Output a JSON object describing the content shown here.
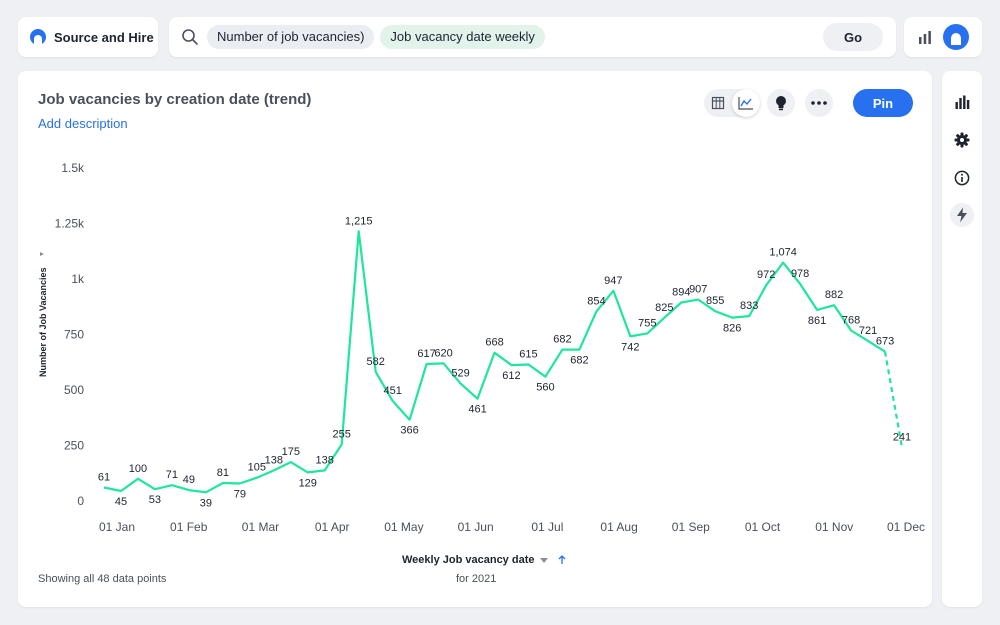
{
  "header": {
    "brand": "Source and Hire",
    "search_chips": [
      "Number of job vacancies)",
      "Job vacancy date weekly"
    ],
    "go_label": "Go"
  },
  "card": {
    "title": "Job vacancies by creation date (trend)",
    "add_description": "Add description",
    "pin_label": "Pin",
    "footer_note": "Showing all 48 data points",
    "x_axis_title": "Weekly Job vacancy date",
    "x_axis_sub": "for 2021",
    "y_axis_title": "Number of Job Vacancies"
  },
  "colors": {
    "line": "#1ee69b",
    "accent": "#2770ef",
    "text": "#1d232f",
    "muted": "#4a505b"
  },
  "icons": {
    "table": "table-icon",
    "chart": "line-chart-icon",
    "insight": "lightbulb-icon",
    "more": "more-icon",
    "side": [
      "bar-chart-icon",
      "gear-icon",
      "info-icon",
      "flash-icon"
    ]
  },
  "chart_data": {
    "type": "line",
    "x_tick_labels": [
      "01 Jan",
      "01 Feb",
      "01 Mar",
      "01 Apr",
      "01 May",
      "01 Jun",
      "01 Jul",
      "01 Aug",
      "01 Sep",
      "01 Oct",
      "01 Nov",
      "01 Dec"
    ],
    "y_tick_labels": [
      "0",
      "250",
      "500",
      "750",
      "1k",
      "1.25k",
      "1.5k"
    ],
    "ylim": [
      0,
      1500
    ],
    "xlabel": "Weekly Job vacancy date",
    "ylabel": "Number of Job Vacancies",
    "values": [
      61,
      45,
      100,
      53,
      71,
      49,
      39,
      81,
      79,
      105,
      138,
      175,
      129,
      138,
      255,
      1215,
      582,
      451,
      366,
      617,
      620,
      529,
      461,
      668,
      612,
      615,
      560,
      682,
      682,
      854,
      947,
      742,
      755,
      825,
      894,
      907,
      855,
      826,
      833,
      972,
      1074,
      978,
      861,
      882,
      768,
      721,
      673,
      241
    ],
    "labels": [
      "61",
      "45",
      "100",
      "53",
      "71",
      "49",
      "39",
      "81",
      "79",
      "105",
      "138",
      "175",
      "129",
      "138",
      "255",
      "1,215",
      "582",
      "451",
      "366",
      "617",
      "620",
      "529",
      "461",
      "668",
      "612",
      "615",
      "560",
      "682",
      "682",
      "854",
      "947",
      "742",
      "755",
      "825",
      "894",
      "907",
      "855",
      "826",
      "833",
      "972",
      "1,074",
      "978",
      "861",
      "882",
      "768",
      "721",
      "673",
      "241"
    ],
    "last_segment_dashed": true,
    "grid": false,
    "legend": "none"
  }
}
